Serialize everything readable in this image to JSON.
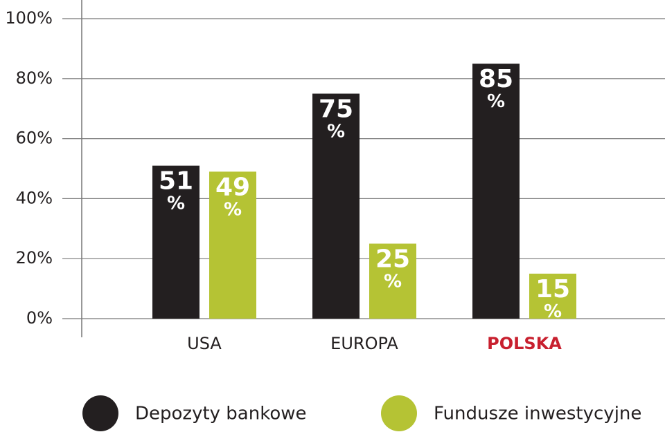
{
  "chart_data": {
    "type": "bar",
    "categories": [
      "USA",
      "EUROPA",
      "POLSKA"
    ],
    "category_colors": [
      "#231f20",
      "#231f20",
      "#c8202f"
    ],
    "series": [
      {
        "name": "Depozyty bankowe",
        "color": "#231f20",
        "values": [
          51,
          75,
          85
        ],
        "value_labels": [
          "51%",
          "75%",
          "85%"
        ]
      },
      {
        "name": "Fundusze inwestycyjne",
        "color": "#b5c334",
        "values": [
          49,
          25,
          15
        ],
        "value_labels": [
          "49%",
          "25%",
          "15%"
        ]
      }
    ],
    "ylim": [
      0,
      100
    ],
    "yticks": [
      {
        "value": 0,
        "label": "0%"
      },
      {
        "value": 20,
        "label": "20%"
      },
      {
        "value": 40,
        "label": "40%"
      },
      {
        "value": 60,
        "label": "60%"
      },
      {
        "value": 80,
        "label": "80%"
      },
      {
        "value": 100,
        "label": "100%"
      }
    ],
    "grid": true
  }
}
